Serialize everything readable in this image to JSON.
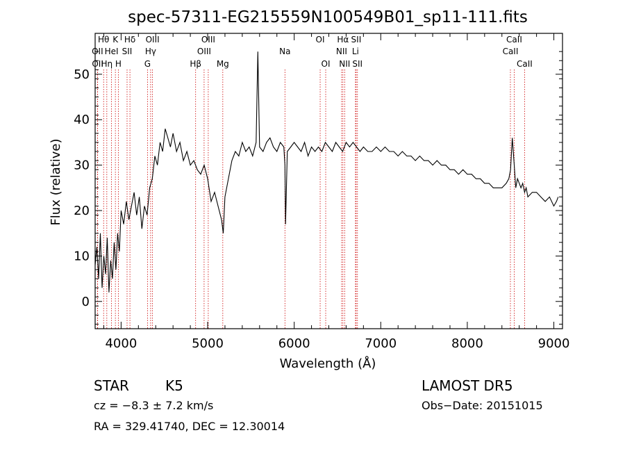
{
  "chart_data": {
    "type": "line",
    "title": "spec-57311-EG215559N100549B01_sp11-111.fits",
    "xlabel": "Wavelength (Å)",
    "ylabel": "Flux (relative)",
    "xlim": [
      3700,
      9100
    ],
    "ylim": [
      -6,
      59
    ],
    "x_ticks": [
      4000,
      5000,
      6000,
      7000,
      8000,
      9000
    ],
    "y_ticks": [
      0,
      10,
      20,
      30,
      40,
      50
    ],
    "x_tick_labels": [
      "4000",
      "5000",
      "6000",
      "7000",
      "8000",
      "9000"
    ],
    "y_tick_labels": [
      "0",
      "10",
      "20",
      "30",
      "40",
      "50"
    ],
    "grid": false,
    "line_color": "#000000",
    "marker_color": "#cc0000",
    "series": [
      {
        "x": [
          3700,
          3720,
          3740,
          3760,
          3780,
          3800,
          3820,
          3840,
          3860,
          3880,
          3900,
          3920,
          3940,
          3960,
          3980,
          4000,
          4030,
          4060,
          4090,
          4120,
          4150,
          4180,
          4210,
          4240,
          4270,
          4300,
          4330,
          4360,
          4390,
          4420,
          4450,
          4480,
          4510,
          4540,
          4570,
          4600,
          4640,
          4680,
          4720,
          4760,
          4800,
          4840,
          4880,
          4920,
          4960,
          5000,
          5040,
          5080,
          5120,
          5160,
          5180,
          5200,
          5240,
          5280,
          5320,
          5360,
          5400,
          5440,
          5480,
          5520,
          5560,
          5580,
          5600,
          5640,
          5680,
          5720,
          5760,
          5800,
          5840,
          5880,
          5893,
          5900,
          5920,
          5960,
          6000,
          6040,
          6080,
          6120,
          6160,
          6200,
          6240,
          6280,
          6320,
          6360,
          6400,
          6440,
          6480,
          6520,
          6560,
          6600,
          6640,
          6680,
          6720,
          6760,
          6800,
          6850,
          6900,
          6950,
          7000,
          7050,
          7100,
          7150,
          7200,
          7250,
          7300,
          7350,
          7400,
          7450,
          7500,
          7550,
          7600,
          7650,
          7700,
          7750,
          7800,
          7850,
          7900,
          7950,
          8000,
          8050,
          8100,
          8150,
          8200,
          8250,
          8300,
          8350,
          8400,
          8450,
          8480,
          8500,
          8520,
          8542,
          8560,
          8580,
          8600,
          8620,
          8640,
          8662,
          8680,
          8700,
          8750,
          8800,
          8850,
          8900,
          8950,
          9000,
          9030,
          9050
        ],
        "y": [
          8,
          12,
          5,
          15,
          3,
          10,
          6,
          14,
          2,
          9,
          5,
          13,
          7,
          15,
          11,
          20,
          17,
          22,
          18,
          21,
          24,
          19,
          23,
          16,
          21,
          19,
          25,
          27,
          32,
          30,
          35,
          33,
          38,
          36,
          34,
          37,
          33,
          35,
          31,
          33,
          30,
          31,
          29,
          28,
          30,
          27,
          22,
          24,
          21,
          18,
          15,
          23,
          27,
          31,
          33,
          32,
          35,
          33,
          34,
          32,
          35,
          55,
          34,
          33,
          35,
          36,
          34,
          33,
          35,
          34,
          30,
          17,
          33,
          34,
          35,
          34,
          33,
          35,
          32,
          34,
          33,
          34,
          33,
          35,
          34,
          33,
          35,
          34,
          33,
          35,
          34,
          35,
          34,
          33,
          34,
          33,
          33,
          34,
          33,
          34,
          33,
          33,
          32,
          33,
          32,
          32,
          31,
          32,
          31,
          31,
          30,
          31,
          30,
          30,
          29,
          29,
          28,
          29,
          28,
          28,
          27,
          27,
          26,
          26,
          25,
          25,
          25,
          26,
          27,
          29,
          36,
          30,
          25,
          27,
          26,
          25,
          26,
          24,
          25,
          23,
          24,
          24,
          23,
          22,
          23,
          21,
          22,
          23
        ]
      }
    ],
    "line_markers": [
      {
        "label": "Hθ",
        "x": 3798,
        "row": 1
      },
      {
        "label": "OII",
        "x": 3727,
        "row": 2
      },
      {
        "label": "OII",
        "x": 3729,
        "row": 3
      },
      {
        "label": "Hη",
        "x": 3835,
        "row": 3
      },
      {
        "label": "HeI",
        "x": 3889,
        "row": 2
      },
      {
        "label": "K",
        "x": 3934,
        "row": 1
      },
      {
        "label": "H",
        "x": 3968,
        "row": 3
      },
      {
        "label": "Hδ",
        "x": 4102,
        "row": 1
      },
      {
        "label": "SII",
        "x": 4069,
        "row": 2
      },
      {
        "label": "OIII",
        "x": 4363,
        "row": 1
      },
      {
        "label": "Hγ",
        "x": 4341,
        "row": 2
      },
      {
        "label": "G",
        "x": 4305,
        "row": 3
      },
      {
        "label": "Hβ",
        "x": 4861,
        "row": 3
      },
      {
        "label": "OIII",
        "x": 5007,
        "row": 1
      },
      {
        "label": "OIII",
        "x": 4959,
        "row": 2
      },
      {
        "label": "Mg",
        "x": 5175,
        "row": 3
      },
      {
        "label": "Na",
        "x": 5893,
        "row": 2
      },
      {
        "label": "OI",
        "x": 6300,
        "row": 1
      },
      {
        "label": "OI",
        "x": 6364,
        "row": 3
      },
      {
        "label": "Hα",
        "x": 6563,
        "row": 1
      },
      {
        "label": "NII",
        "x": 6548,
        "row": 2
      },
      {
        "label": "NII",
        "x": 6583,
        "row": 3
      },
      {
        "label": "SII",
        "x": 6716,
        "row": 1
      },
      {
        "label": "Li",
        "x": 6708,
        "row": 2
      },
      {
        "label": "SII",
        "x": 6731,
        "row": 3
      },
      {
        "label": "CaII",
        "x": 8542,
        "row": 1
      },
      {
        "label": "CaII",
        "x": 8498,
        "row": 2
      },
      {
        "label": "CaII",
        "x": 8662,
        "row": 3
      }
    ]
  },
  "info": {
    "class_label": "STAR",
    "subclass_label": "K5",
    "survey": "LAMOST DR5",
    "cz": "cz = −8.3 ± 7.2 km/s",
    "obs_date": "Obs−Date: 20151015",
    "coords": "RA = 329.41740, DEC =  12.30014"
  }
}
